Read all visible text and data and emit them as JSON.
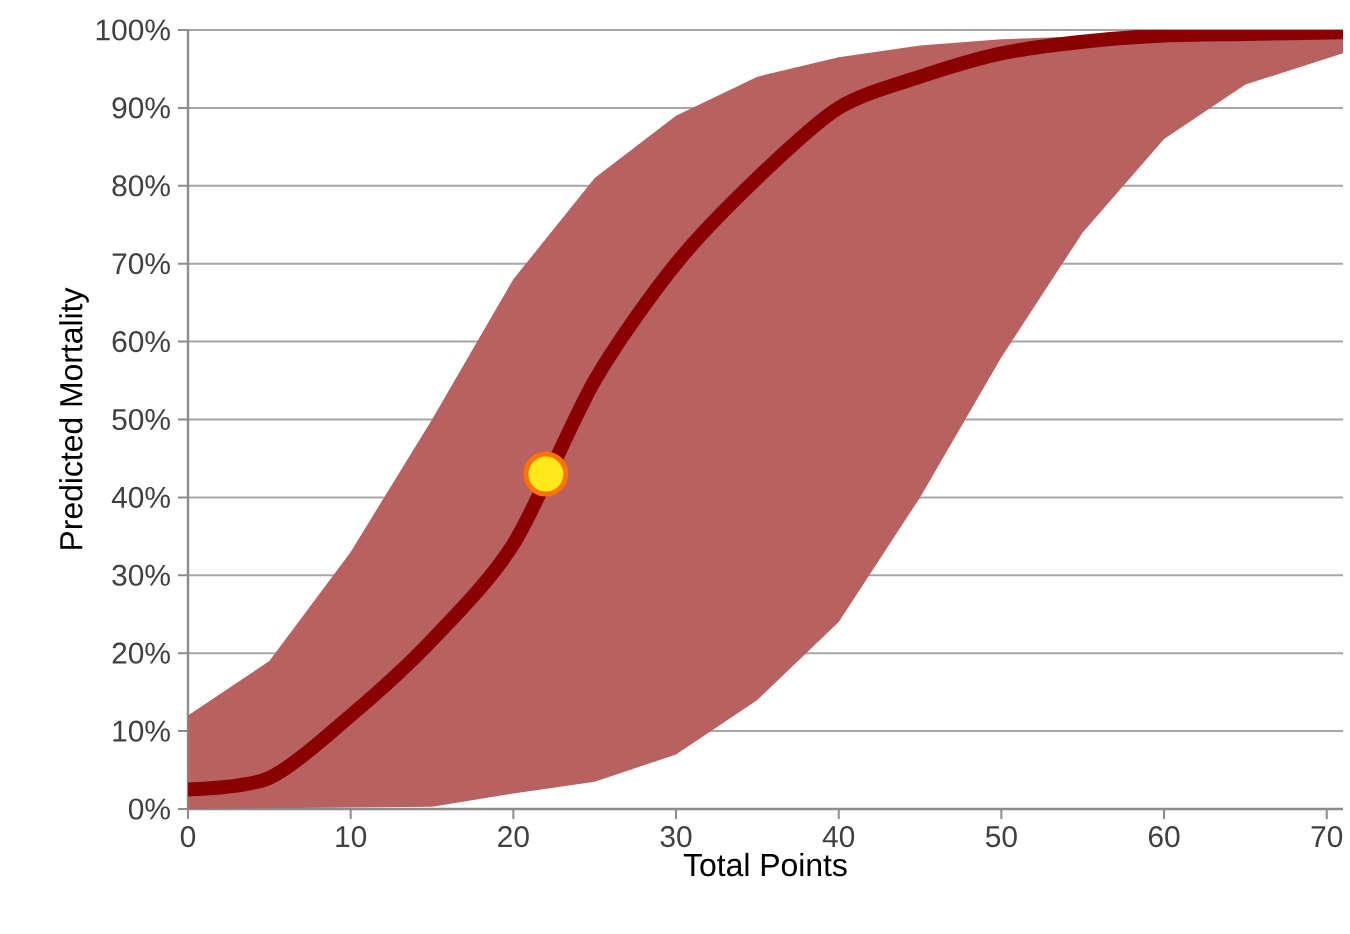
{
  "chart_data": {
    "type": "line",
    "xlabel": "Total Points",
    "ylabel": "Predicted Mortality",
    "x": [
      0,
      5,
      10,
      15,
      20,
      25,
      30,
      35,
      40,
      45,
      50,
      55,
      60,
      65,
      71
    ],
    "series": [
      {
        "color": "#8b0000",
        "marker": "none",
        "values": [
          2.5,
          4,
          12,
          21.7,
          34,
          55,
          70,
          81,
          90,
          94,
          97,
          98.5,
          99.3,
          99.5,
          99.7
        ],
        "lower": [
          0,
          0.1,
          0.2,
          0.3,
          2,
          3.5,
          7,
          14,
          24,
          40,
          58,
          74,
          86,
          93,
          97
        ],
        "upper": [
          12,
          19,
          33,
          50,
          68,
          81,
          89,
          94,
          96.5,
          98,
          98.8,
          99.2,
          99.5,
          99.7,
          99.8
        ]
      },
      {
        "type": "scatter",
        "color": "#ffe81a",
        "marker": "circle",
        "x": [
          22
        ],
        "values": [
          43
        ]
      }
    ],
    "xlim": [
      0,
      71
    ],
    "ylim": [
      0,
      100
    ],
    "xticks": [
      0,
      10,
      20,
      30,
      40,
      50,
      60,
      70
    ],
    "yticks": [
      {
        "value": 0,
        "label": "0%"
      },
      {
        "value": 10,
        "label": "10%"
      },
      {
        "value": 20,
        "label": "20%"
      },
      {
        "value": 30,
        "label": "30%"
      },
      {
        "value": 40,
        "label": "40%"
      },
      {
        "value": 50,
        "label": "50%"
      },
      {
        "value": 60,
        "label": "60%"
      },
      {
        "value": 70,
        "label": "70%"
      },
      {
        "value": 80,
        "label": "80%"
      },
      {
        "value": 90,
        "label": "90%"
      },
      {
        "value": 100,
        "label": "100%"
      }
    ],
    "grid": "y"
  }
}
